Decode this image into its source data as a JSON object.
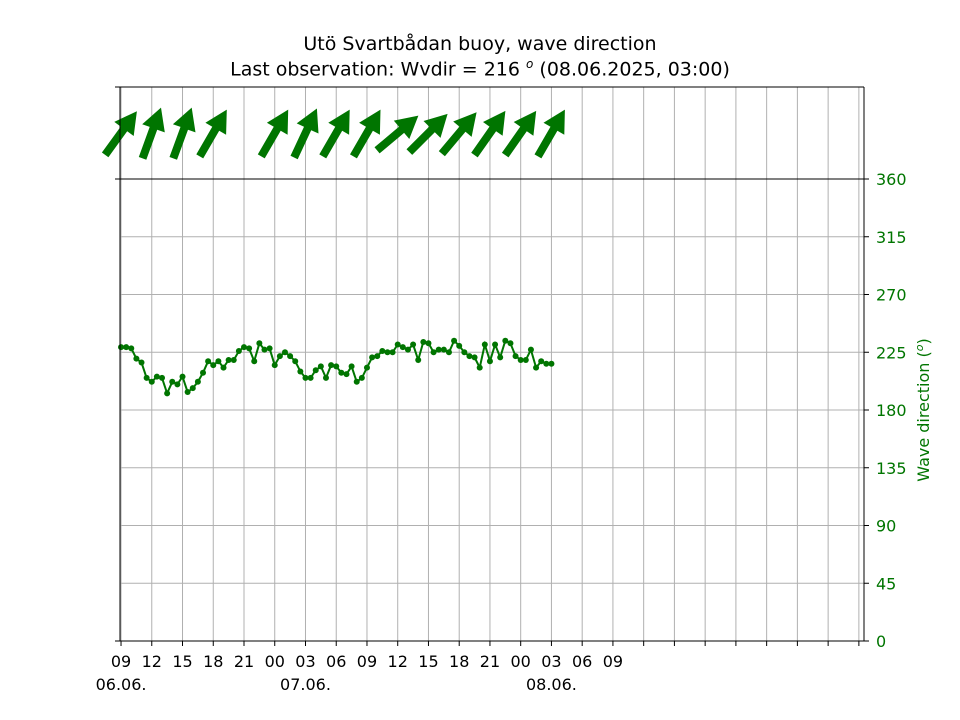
{
  "header": {
    "title": "Utö Svartbådan buoy, wave direction",
    "subtitle_prefix": "Last observation: Wvdir = 216",
    "subtitle_unit": "o",
    "subtitle_suffix": "(08.06.2025, 03:00)"
  },
  "colors": {
    "series": "#007500",
    "arrow": "#007500",
    "grid": "#b0b0b0",
    "axis": "#000000",
    "right_axis_text": "#007500"
  },
  "chart_data": {
    "type": "line",
    "title": "Utö Svartbådan buoy, wave direction",
    "ylabel": "Wave direction (",
    "ylabel_unit": "o",
    "ylabel_close": ")",
    "ylim": [
      0,
      360
    ],
    "xlim_hours": [
      -0.1,
      72.5
    ],
    "yticks": [
      0,
      45,
      90,
      135,
      180,
      225,
      270,
      315,
      360
    ],
    "ytick_labels": [
      "0",
      "45",
      "90",
      "135",
      "180",
      "225",
      "270",
      "315",
      "360"
    ],
    "xticks_hours": [
      0,
      3,
      6,
      9,
      12,
      15,
      18,
      21,
      24,
      27,
      30,
      33,
      36,
      39,
      42,
      45,
      48,
      51,
      54,
      57,
      60,
      63,
      66,
      69,
      72
    ],
    "xtick_labels": [
      "09",
      "12",
      "15",
      "18",
      "21",
      "00",
      "03",
      "06",
      "09",
      "12",
      "15",
      "18",
      "21",
      "00",
      "03",
      "06",
      "09"
    ],
    "xtick_label_hours": [
      0,
      3,
      6,
      9,
      12,
      15,
      18,
      21,
      24,
      27,
      30,
      33,
      36,
      39,
      42,
      45,
      48
    ],
    "date_labels": [
      {
        "hour": 0,
        "text": "06.06."
      },
      {
        "hour": 18,
        "text": "07.06."
      },
      {
        "hour": 42,
        "text": "08.06."
      }
    ],
    "series": [
      {
        "x_hours": [
          0,
          0.5,
          1,
          1.5,
          2,
          2.5,
          3,
          3.5,
          4,
          4.5,
          5,
          5.5,
          6,
          6.5,
          7,
          7.5,
          8,
          8.5,
          9,
          9.5,
          10,
          10.5,
          11,
          11.5,
          12,
          12.5,
          13,
          13.5,
          14,
          14.5,
          15,
          15.5,
          16,
          16.5,
          17,
          17.5,
          18,
          18.5,
          19,
          19.5,
          20,
          20.5,
          21,
          21.5,
          22,
          22.5,
          23,
          23.5,
          24,
          24.5,
          25,
          25.5,
          26,
          26.5,
          27,
          27.5,
          28,
          28.5,
          29,
          29.5,
          30,
          30.5,
          31,
          31.5,
          32,
          32.5,
          33,
          33.5,
          34,
          34.5,
          35,
          35.5,
          36,
          36.5,
          37,
          37.5,
          38,
          38.5,
          39,
          39.5,
          40,
          40.5,
          41,
          41.5,
          42
        ],
        "values": [
          229,
          229,
          228,
          220,
          217,
          205,
          202,
          206,
          205,
          193,
          202,
          200,
          206,
          194,
          197,
          202,
          209,
          218,
          215,
          218,
          213,
          219,
          219,
          226,
          229,
          228,
          218,
          232,
          227,
          228,
          215,
          222,
          225,
          222,
          218,
          210,
          205,
          205,
          211,
          214,
          205,
          215,
          214,
          209,
          208,
          214,
          202,
          205,
          213,
          221,
          222,
          226,
          225,
          225,
          231,
          229,
          227,
          231,
          219,
          233,
          232,
          225,
          227,
          227,
          225,
          234,
          230,
          225,
          222,
          221,
          213,
          231,
          218,
          231,
          221,
          234,
          232,
          222,
          219,
          219,
          227,
          213,
          218,
          216,
          216
        ]
      }
    ],
    "arrows_hours": [
      0,
      3,
      6,
      9,
      15,
      18,
      21,
      24,
      27,
      30,
      33,
      36,
      39,
      42
    ],
    "arrow_dirs_deg": [
      216,
      200,
      200,
      210,
      210,
      205,
      210,
      210,
      230,
      225,
      220,
      215,
      215,
      210
    ]
  }
}
